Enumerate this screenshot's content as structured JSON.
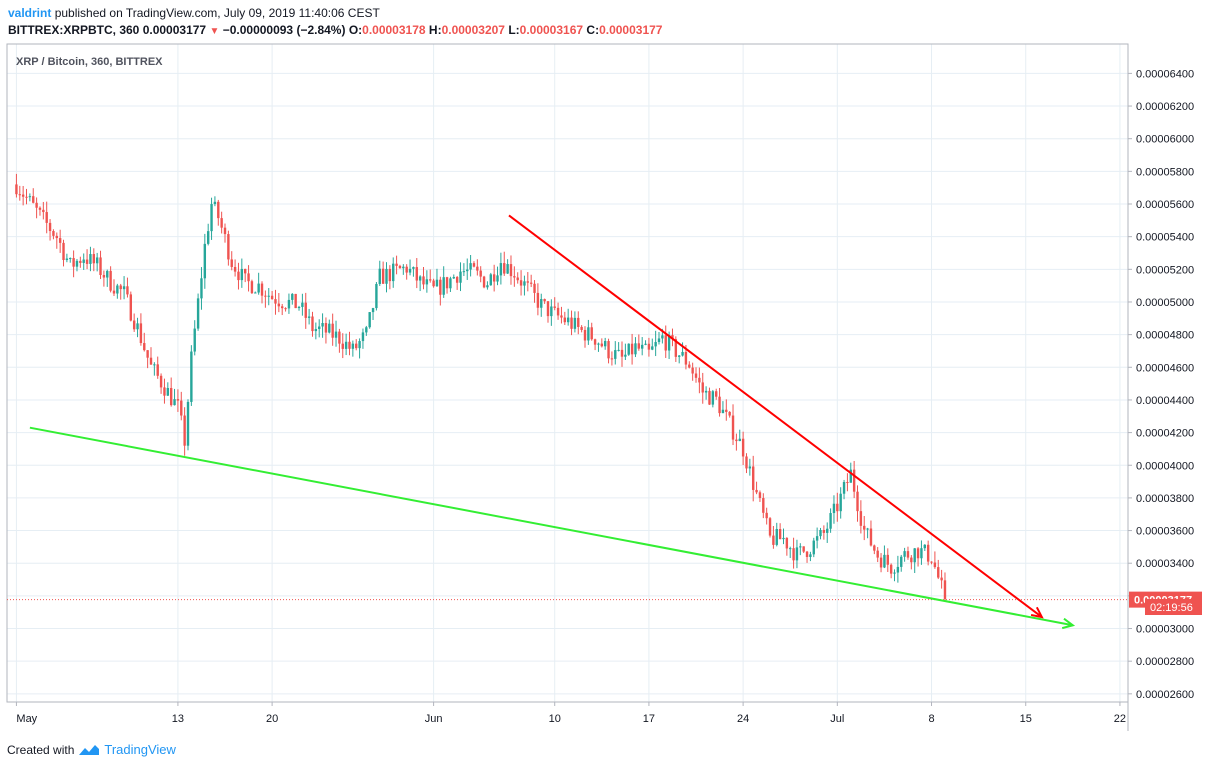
{
  "header": {
    "author": "valdrint",
    "published_text": "published on TradingView.com, July 09, 2019 11:40:06 CEST",
    "symbol": "BITTREX:XRPBTC, 360",
    "last": "0.00003177",
    "change": "−0.00000093 (−2.84%)",
    "open_label": "O:",
    "open": "0.00003178",
    "high_label": "H:",
    "high": "0.00003207",
    "low_label": "L:",
    "low": "0.00003167",
    "close_label": "C:",
    "close": "0.00003177"
  },
  "legend_label": "XRP / Bitcoin, 360, BITTREX",
  "price_badge": "0.00003177",
  "countdown_badge": "02:19:56",
  "footer": {
    "created_with": "Created with",
    "brand": "TradingView"
  },
  "colors": {
    "up": "#26a69a",
    "down": "#ef5350",
    "resistance": "#ff0000",
    "support": "#33ee33",
    "grid": "#e6eef4"
  },
  "chart_data": {
    "type": "candlestick",
    "y_ticks": [
      "0.00006400",
      "0.00006200",
      "0.00006000",
      "0.00005800",
      "0.00005600",
      "0.00005400",
      "0.00005200",
      "0.00005000",
      "0.00004800",
      "0.00004600",
      "0.00004400",
      "0.00004200",
      "0.00004000",
      "0.00003800",
      "0.00003600",
      "0.00003400",
      "0.00003200",
      "0.00003000",
      "0.00002800",
      "0.00002600"
    ],
    "ylim": [
      2.55e-05,
      6.58e-05
    ],
    "x_ticks": [
      {
        "label": "May",
        "day": 0
      },
      {
        "label": "13",
        "day": 12
      },
      {
        "label": "20",
        "day": 19
      },
      {
        "label": "Jun",
        "day": 31
      },
      {
        "label": "10",
        "day": 40
      },
      {
        "label": "17",
        "day": 47
      },
      {
        "label": "24",
        "day": 54
      },
      {
        "label": "Jul",
        "day": 61
      },
      {
        "label": "8",
        "day": 68
      },
      {
        "label": "15",
        "day": 75
      },
      {
        "label": "22",
        "day": 82
      }
    ],
    "xlim": [
      -0.7,
      82.6
    ],
    "close_series": [
      [
        0,
        5.72e-05
      ],
      [
        2,
        5.5e-05
      ],
      [
        3,
        5.4e-05
      ],
      [
        4,
        5.22e-05
      ],
      [
        5,
        5.28e-05
      ],
      [
        6,
        5.22e-05
      ],
      [
        7,
        5.12e-05
      ],
      [
        8,
        5.05e-05
      ],
      [
        9,
        4.84e-05
      ],
      [
        10,
        4.6e-05
      ],
      [
        11,
        4.48e-05
      ],
      [
        12,
        4.35e-05
      ],
      [
        12.5,
        4.15e-05
      ],
      [
        13,
        4.65e-05
      ],
      [
        14,
        5.34e-05
      ],
      [
        14.5,
        5.6e-05
      ],
      [
        15,
        5.52e-05
      ],
      [
        16,
        5.25e-05
      ],
      [
        17,
        5.12e-05
      ],
      [
        18,
        5.1e-05
      ],
      [
        19,
        5.03e-05
      ],
      [
        20,
        5e-05
      ],
      [
        21,
        4.98e-05
      ],
      [
        22,
        4.84e-05
      ],
      [
        23,
        4.82e-05
      ],
      [
        24,
        4.78e-05
      ],
      [
        25,
        4.7e-05
      ],
      [
        26,
        4.8e-05
      ],
      [
        27,
        5.15e-05
      ],
      [
        28,
        5.18e-05
      ],
      [
        29,
        5.21e-05
      ],
      [
        30,
        5.12e-05
      ],
      [
        31,
        5.07e-05
      ],
      [
        32,
        5.12e-05
      ],
      [
        33,
        5.19e-05
      ],
      [
        34,
        5.18e-05
      ],
      [
        35,
        5.12e-05
      ],
      [
        36,
        5.25e-05
      ],
      [
        37,
        5.18e-05
      ],
      [
        38,
        5.08e-05
      ],
      [
        39,
        4.98e-05
      ],
      [
        40,
        4.92e-05
      ],
      [
        41,
        4.88e-05
      ],
      [
        42,
        4.82e-05
      ],
      [
        43,
        4.78e-05
      ],
      [
        44,
        4.7e-05
      ],
      [
        45,
        4.65e-05
      ],
      [
        46,
        4.72e-05
      ],
      [
        47,
        4.68e-05
      ],
      [
        48,
        4.78e-05
      ],
      [
        49,
        4.7e-05
      ],
      [
        50,
        4.62e-05
      ],
      [
        51,
        4.45e-05
      ],
      [
        52,
        4.4e-05
      ],
      [
        53,
        4.25e-05
      ],
      [
        54,
        4.1e-05
      ],
      [
        55,
        3.82e-05
      ],
      [
        56,
        3.55e-05
      ],
      [
        57,
        3.55e-05
      ],
      [
        58,
        3.45e-05
      ],
      [
        59,
        3.5e-05
      ],
      [
        60,
        3.58e-05
      ],
      [
        61,
        3.75e-05
      ],
      [
        62,
        3.95e-05
      ],
      [
        63,
        3.6e-05
      ],
      [
        64,
        3.45e-05
      ],
      [
        65,
        3.38e-05
      ],
      [
        66,
        3.45e-05
      ],
      [
        67,
        3.48e-05
      ],
      [
        68,
        3.44e-05
      ],
      [
        69,
        3.18e-05
      ]
    ],
    "resistance_line": {
      "start": [
        36.6,
        5.53e-05
      ],
      "end": [
        76.2,
        3.07e-05
      ]
    },
    "support_line": {
      "start": [
        1.0,
        4.23e-05
      ],
      "end": [
        78.5,
        3.02e-05
      ]
    },
    "last_price": 3.177e-05
  }
}
